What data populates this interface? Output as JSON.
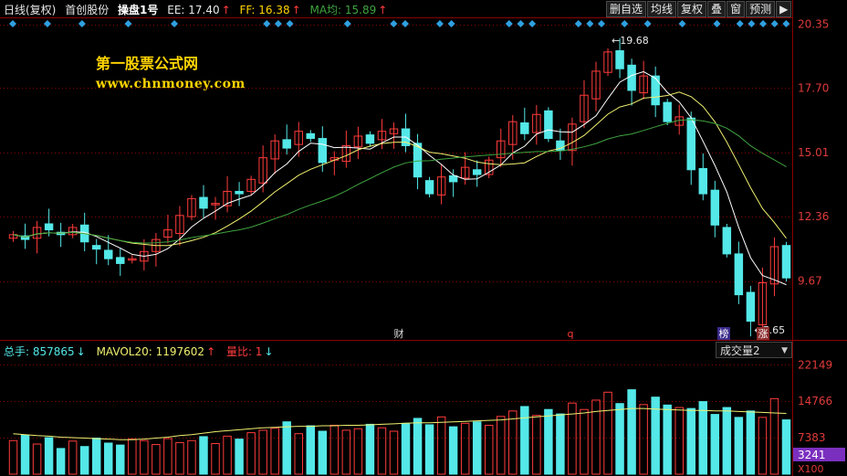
{
  "header": {
    "period": "日线(复权)",
    "stock": "首创股份",
    "indicator": "操盘1号",
    "ee_label": "EE: 17.40",
    "ee_arrow": "↑",
    "ff_label": "FF: 16.38",
    "ff_arrow": "↑",
    "ma_label": "MA均: 15.89",
    "ma_arrow": "↑"
  },
  "toolbar": {
    "b1": "删自选",
    "b2": "均线",
    "b3": "复权",
    "b4": "叠",
    "b5": "窗",
    "b6": "预测",
    "b7": "▶"
  },
  "watermark": {
    "line1": "第一股票公式网",
    "line2": "www.chnmoney.com"
  },
  "markers": {
    "cai": "财",
    "q": "q",
    "bang": "榜",
    "zhang": "涨"
  },
  "volume_header": {
    "total": "总手: 857865",
    "total_arrow": "↓",
    "mavol": "MAVOL20: 1197602",
    "mavol_arrow": "↑",
    "ratio": "量比: 1",
    "ratio_arrow": "↓"
  },
  "volume_select": "成交量2",
  "colors": {
    "up": "#ff3b3b",
    "down": "#54e8e8",
    "ma_fast": "#ffffff",
    "ma_mid": "#f0f070",
    "ma_slow": "#3fa33f",
    "marker": "#2fa0e0",
    "grid": "#8b0000"
  },
  "chart_data": [
    {
      "type": "candlestick",
      "y_ticks": [
        "20.35",
        "17.70",
        "15.01",
        "12.36",
        "9.67"
      ],
      "ylim": [
        7.3,
        20.6
      ],
      "annotations": {
        "high_label": "19.68",
        "low_label": "7.65"
      },
      "ma_lines": [
        "fast",
        "mid",
        "slow"
      ],
      "close_path": [
        11.6,
        11.4,
        11.9,
        11.8,
        11.6,
        11.9,
        11.3,
        11.0,
        10.6,
        10.4,
        10.6,
        10.9,
        11.4,
        11.8,
        12.4,
        13.1,
        12.7,
        12.9,
        13.4,
        13.3,
        13.9,
        14.8,
        15.5,
        15.2,
        15.9,
        15.6,
        14.6,
        14.8,
        15.3,
        15.7,
        15.4,
        15.9,
        16.0,
        15.3,
        14.0,
        13.3,
        14.0,
        13.8,
        14.4,
        14.1,
        14.7,
        15.5,
        16.3,
        15.8,
        16.6,
        15.6,
        15.1,
        16.2,
        17.4,
        18.4,
        19.2,
        18.5,
        17.6,
        18.2,
        17.0,
        16.3,
        16.5,
        14.3,
        13.3,
        12.0,
        10.8,
        9.1,
        8.0,
        9.6,
        11.1,
        9.8
      ]
    },
    {
      "type": "bar",
      "y_ticks": [
        "22149",
        "14766",
        "7383"
      ],
      "current_label": "3241",
      "unit_label": "X100",
      "ylim": [
        0,
        23500
      ],
      "values": [
        6800,
        7900,
        6100,
        7400,
        5200,
        6700,
        5600,
        7300,
        6300,
        5900,
        7100,
        6800,
        6000,
        7200,
        6400,
        6800,
        7600,
        6200,
        7700,
        7100,
        8400,
        8900,
        9300,
        10600,
        8200,
        9800,
        8700,
        9900,
        8900,
        9200,
        10100,
        9400,
        8700,
        10300,
        11300,
        10000,
        11600,
        9600,
        10300,
        10600,
        9900,
        11700,
        12800,
        13700,
        11900,
        13100,
        12200,
        14400,
        13100,
        15000,
        16600,
        14300,
        17100,
        14100,
        15600,
        14000,
        13500,
        13300,
        14700,
        12100,
        13500,
        11500,
        12800,
        11500,
        15300,
        11000
      ],
      "mavol20": [
        8200,
        8000,
        7800,
        7700,
        7500,
        7400,
        7300,
        7200,
        7100,
        7000,
        7000,
        7100,
        7300,
        7500,
        7800,
        8000,
        8300,
        8600,
        8800,
        9000,
        9200,
        9400,
        9500,
        9600,
        9700,
        9700,
        9800,
        9800,
        9900,
        9900,
        10000,
        10100,
        10200,
        10300,
        10400,
        10400,
        10500,
        10600,
        10700,
        10800,
        10900,
        11000,
        11200,
        11400,
        11600,
        11800,
        12000,
        12200,
        12400,
        12700,
        12900,
        13100,
        13300,
        13300,
        13200,
        13100,
        13000,
        12900,
        12900,
        12800,
        12800,
        12700,
        12600,
        12500,
        12400,
        12300
      ]
    }
  ]
}
